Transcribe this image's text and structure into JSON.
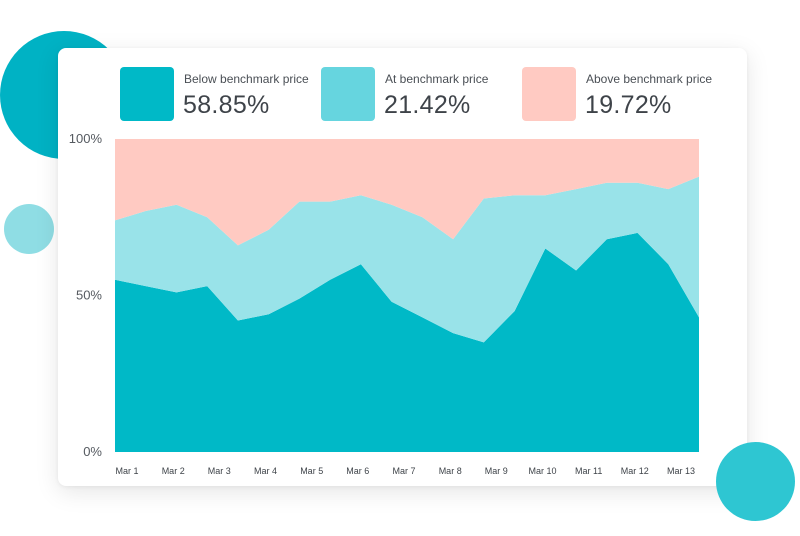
{
  "legend": [
    {
      "label": "Below benchmark price",
      "value": "58.85%",
      "color": "#00b9c7"
    },
    {
      "label": "At benchmark price",
      "value": "21.42%",
      "color": "#66d5df"
    },
    {
      "label": "Above benchmark price",
      "value": "19.72%",
      "color": "#ffcac2"
    }
  ],
  "chart_data": {
    "type": "area",
    "stacked": true,
    "x": [
      "Mar 1",
      "Mar 1.5",
      "Mar 2",
      "Mar 3",
      "Mar 4",
      "Mar 4.5",
      "Mar 5",
      "Mar 6",
      "Mar 7",
      "Mar 7.5",
      "Mar 8",
      "Mar 8.5",
      "Mar 9",
      "Mar 9.5",
      "Mar 10",
      "Mar 11",
      "Mar 12",
      "Mar 12.5",
      "Mar 13",
      "Mar 13.5"
    ],
    "categories": [
      "Mar 1",
      "Mar 2",
      "Mar 3",
      "Mar 4",
      "Mar 5",
      "Mar 6",
      "Mar 7",
      "Mar 8",
      "Mar 9",
      "Mar 10",
      "Mar 11",
      "Mar 12",
      "Mar 13"
    ],
    "ylim": [
      0,
      100
    ],
    "yticks": [
      "0%",
      "50%",
      "100%"
    ],
    "series": [
      {
        "name": "Below benchmark price",
        "color": "#00b9c7",
        "values": [
          55,
          53,
          51,
          53,
          42,
          44,
          49,
          55,
          60,
          48,
          43,
          38,
          35,
          45,
          65,
          58,
          68,
          70,
          60,
          43
        ]
      },
      {
        "name": "At benchmark price",
        "color": "#99e3e9",
        "values": [
          19,
          24,
          28,
          22,
          24,
          27,
          31,
          25,
          22,
          31,
          32,
          30,
          46,
          37,
          17,
          26,
          18,
          16,
          24,
          45
        ]
      },
      {
        "name": "Above benchmark price",
        "color": "#ffcac2",
        "values": [
          26,
          23,
          21,
          25,
          34,
          29,
          20,
          20,
          18,
          21,
          25,
          32,
          19,
          18,
          18,
          16,
          14,
          14,
          16,
          12
        ]
      }
    ]
  }
}
